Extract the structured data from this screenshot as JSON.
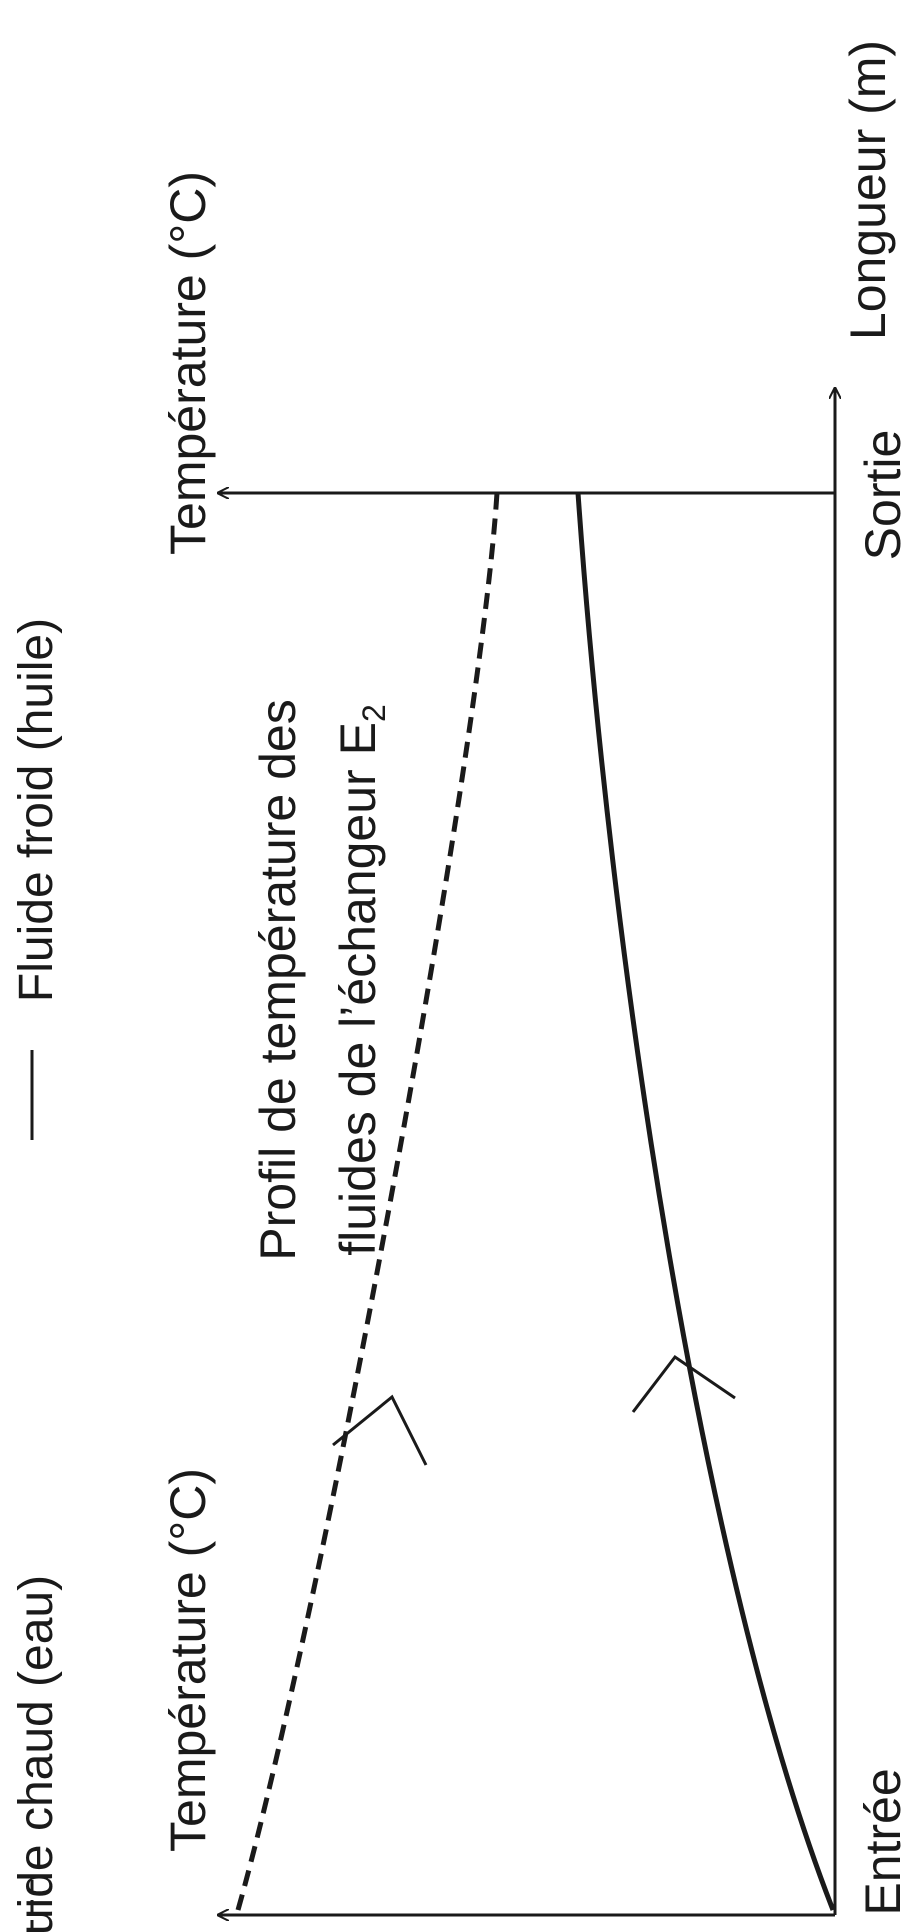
{
  "legend": {
    "hot_fluid": "Fluide chaud (eau)",
    "cold_fluid": "Fluide froid (huile)"
  },
  "axes": {
    "temperature_label_left": "Température (°C)",
    "temperature_label_right": "Température (°C)",
    "length_label": "Longueur (m)",
    "inlet_label": "Entrée",
    "outlet_label": "Sortie"
  },
  "caption": {
    "line1": "Profil de température des",
    "line2_prefix": "fluides de l’échangeur E",
    "line2_subscript": "2"
  },
  "colors": {
    "ink": "#1a1a1a",
    "background": "#ffffff"
  }
}
